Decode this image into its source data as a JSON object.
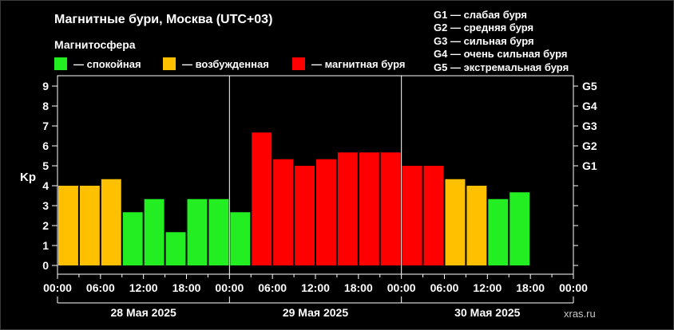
{
  "title": "Магнитные бури, Москва (UTC+03)",
  "subtitle": "Магнитосфера",
  "legend": [
    {
      "label": "— спокойная",
      "color": "#22ee22"
    },
    {
      "label": "— возбужденная",
      "color": "#ffc000"
    },
    {
      "label": "— магнитная буря",
      "color": "#ff0000"
    }
  ],
  "g_scale": [
    "G1 — слабая буря",
    "G2 — средняя буря",
    "G3 — сильная буря",
    "G4 — очень сильная буря",
    "G5 — экстремальная буря"
  ],
  "watermark": "xras.ru",
  "chart_data": {
    "type": "bar",
    "ylabel": "Kp",
    "ylim": [
      0,
      9.5
    ],
    "y_ticks": [
      0,
      1,
      2,
      3,
      4,
      5,
      6,
      7,
      8,
      9
    ],
    "g_ticks": [
      {
        "label": "G1",
        "value": 5
      },
      {
        "label": "G2",
        "value": 6
      },
      {
        "label": "G3",
        "value": 7
      },
      {
        "label": "G4",
        "value": 8
      },
      {
        "label": "G5",
        "value": 9
      }
    ],
    "x_ticks": [
      "00:00",
      "06:00",
      "12:00",
      "18:00",
      "00:00",
      "06:00",
      "12:00",
      "18:00",
      "00:00",
      "06:00",
      "12:00",
      "18:00",
      "00:00"
    ],
    "days": [
      "28 Мая 2025",
      "29 Мая 2025",
      "30 Мая 2025"
    ],
    "interval_hours": 3,
    "values": [
      4.0,
      4.0,
      4.33,
      2.67,
      3.33,
      1.67,
      3.33,
      3.33,
      2.67,
      6.67,
      5.33,
      5.0,
      5.33,
      5.67,
      5.67,
      5.67,
      5.0,
      5.0,
      4.33,
      4.0,
      3.33,
      3.67
    ],
    "colors": {
      "quiet": "#22ee22",
      "active": "#ffc000",
      "storm": "#ff0000"
    },
    "thresholds": {
      "active": 4,
      "storm": 5
    },
    "grid": false
  }
}
